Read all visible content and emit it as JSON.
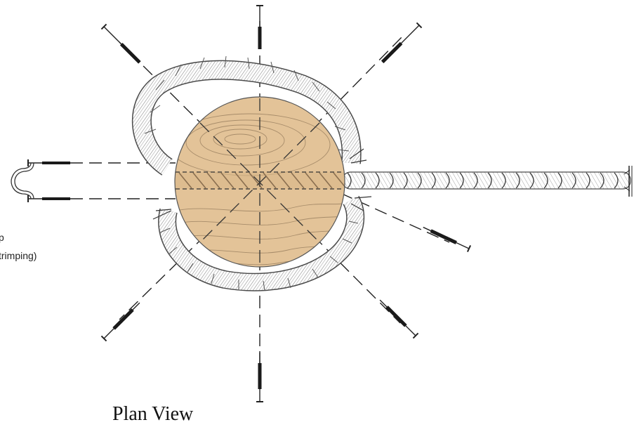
{
  "labels": {
    "callout_line1": "p",
    "callout_line2": "trimping)",
    "caption": "Plan View"
  },
  "colors": {
    "wood": "#e3c398",
    "wood_grain": "#a78c6a",
    "rope_fill": "#ffffff",
    "rope_stroke": "#4a4a4a",
    "line": "#222222",
    "nail_shank": "#1a1a1a"
  },
  "icons": {
    "clamp": "u-clamp-icon",
    "nail": "nail-icon"
  }
}
